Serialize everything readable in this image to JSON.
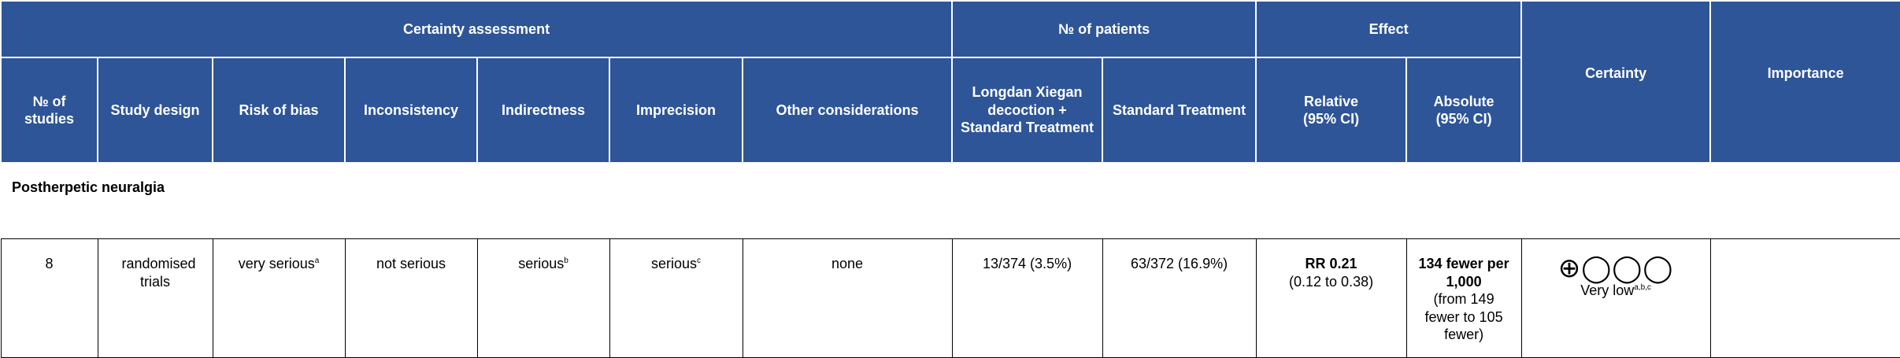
{
  "table": {
    "group_headers": [
      "Certainty assessment",
      "№ of patients",
      "Effect",
      "Certainty",
      "Importance"
    ],
    "columns": [
      "№ of studies",
      "Study design",
      "Risk of bias",
      "Inconsistency",
      "Indirectness",
      "Imprecision",
      "Other considerations",
      "Longdan Xiegan decoction + Standard Treatment",
      "Standard Treatment",
      "Relative (95% CI)",
      "Absolute (95% CI)"
    ],
    "section": "Postherpetic neuralgia",
    "row": {
      "studies": "8",
      "design": "randomised trials",
      "risk_of_bias": {
        "text": "very serious",
        "note": "a"
      },
      "inconsistency": "not serious",
      "indirectness": {
        "text": "serious",
        "note": "b"
      },
      "imprecision": {
        "text": "serious",
        "note": "c"
      },
      "other": "none",
      "intervention": "13/374 (3.5%)",
      "control": "63/372 (16.9%)",
      "relative": {
        "estimate": "RR 0.21",
        "ci": "(0.12 to 0.38)"
      },
      "absolute": {
        "estimate": "134 fewer per 1,000",
        "ci": "(from 149 fewer to 105 fewer)"
      },
      "certainty": {
        "symbols": "⊕◯◯◯",
        "rating": "Very low",
        "notes": "a,b,c"
      }
    }
  }
}
